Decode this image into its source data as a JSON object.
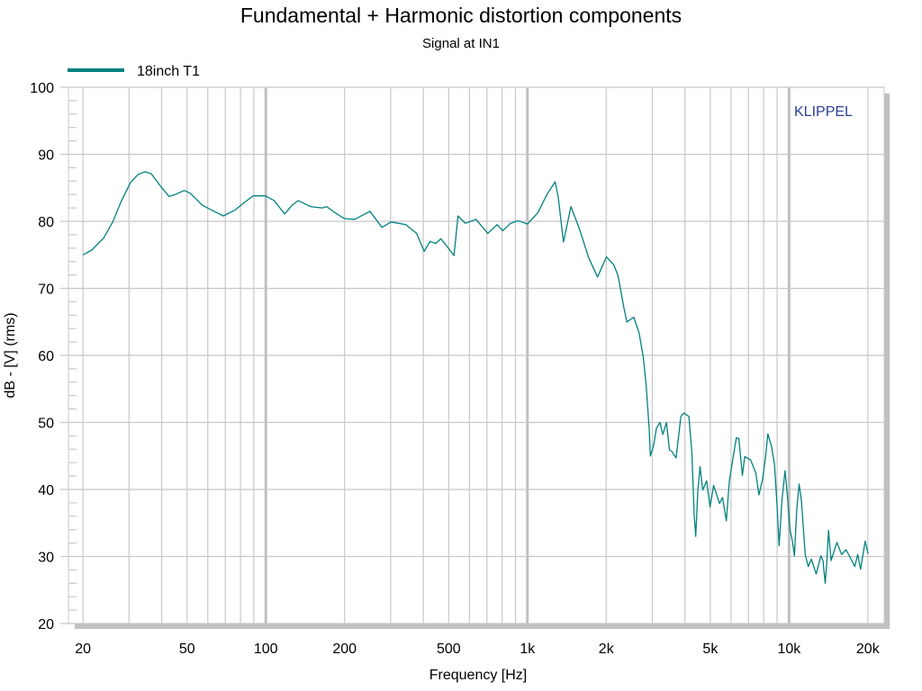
{
  "chart_data": {
    "type": "line",
    "title": "Fundamental + Harmonic distortion components",
    "subtitle": "Signal at IN1",
    "xlabel": "Frequency [Hz]",
    "ylabel": "dB - [V]  (rms)",
    "xscale": "log",
    "xlim": [
      17.6,
      23100
    ],
    "ylim": [
      20,
      100
    ],
    "grid": true,
    "legend_position": "top-left",
    "watermark": "KLIPPEL",
    "xticks": [
      {
        "value": 20,
        "label": "20"
      },
      {
        "value": 50,
        "label": "50"
      },
      {
        "value": 100,
        "label": "100"
      },
      {
        "value": 200,
        "label": "200"
      },
      {
        "value": 500,
        "label": "500"
      },
      {
        "value": 1000,
        "label": "1k"
      },
      {
        "value": 2000,
        "label": "2k"
      },
      {
        "value": 5000,
        "label": "5k"
      },
      {
        "value": 10000,
        "label": "10k"
      },
      {
        "value": 20000,
        "label": "20k"
      }
    ],
    "yticks": [
      20,
      30,
      40,
      50,
      60,
      70,
      80,
      90,
      100
    ],
    "series": [
      {
        "name": "18inch T1",
        "color": "#00827f",
        "points": [
          [
            20,
            75.0
          ],
          [
            21.6,
            75.7
          ],
          [
            24,
            77.5
          ],
          [
            26,
            79.9
          ],
          [
            28.1,
            83.1
          ],
          [
            30.4,
            85.8
          ],
          [
            32.5,
            87.0
          ],
          [
            34.6,
            87.4
          ],
          [
            36.5,
            87.1
          ],
          [
            39.5,
            85.3
          ],
          [
            42.7,
            83.7
          ],
          [
            45,
            84.0
          ],
          [
            48.8,
            84.6
          ],
          [
            51.4,
            84.2
          ],
          [
            57.2,
            82.4
          ],
          [
            61.9,
            81.7
          ],
          [
            68.8,
            80.8
          ],
          [
            76.4,
            81.7
          ],
          [
            82.7,
            82.8
          ],
          [
            89.5,
            83.8
          ],
          [
            99.5,
            83.8
          ],
          [
            107.6,
            83.1
          ],
          [
            118,
            81.1
          ],
          [
            126,
            82.4
          ],
          [
            133,
            83.1
          ],
          [
            148,
            82.2
          ],
          [
            164,
            82.0
          ],
          [
            171,
            82.2
          ],
          [
            182,
            81.4
          ],
          [
            196,
            80.6
          ],
          [
            200,
            80.4
          ],
          [
            219,
            80.3
          ],
          [
            250,
            81.5
          ],
          [
            278,
            79.1
          ],
          [
            301,
            79.9
          ],
          [
            343,
            79.5
          ],
          [
            377,
            78.2
          ],
          [
            403,
            75.5
          ],
          [
            424,
            77.0
          ],
          [
            446,
            76.7
          ],
          [
            467,
            77.4
          ],
          [
            494,
            76.2
          ],
          [
            524,
            74.9
          ],
          [
            543,
            80.8
          ],
          [
            579,
            79.7
          ],
          [
            636,
            80.3
          ],
          [
            705,
            78.2
          ],
          [
            766,
            79.5
          ],
          [
            805,
            78.6
          ],
          [
            862,
            79.7
          ],
          [
            922,
            80.1
          ],
          [
            1000,
            79.6
          ],
          [
            1097,
            81.3
          ],
          [
            1187,
            84.0
          ],
          [
            1277,
            85.9
          ],
          [
            1312,
            83.5
          ],
          [
            1373,
            76.9
          ],
          [
            1466,
            82.2
          ],
          [
            1583,
            78.8
          ],
          [
            1713,
            74.6
          ],
          [
            1852,
            71.7
          ],
          [
            2005,
            74.7
          ],
          [
            2139,
            73.5
          ],
          [
            2220,
            71.9
          ],
          [
            2335,
            67.2
          ],
          [
            2398,
            65.0
          ],
          [
            2550,
            65.7
          ],
          [
            2670,
            63.4
          ],
          [
            2770,
            59.8
          ],
          [
            2840,
            55.8
          ],
          [
            2920,
            49.1
          ],
          [
            2950,
            45.0
          ],
          [
            3030,
            46.4
          ],
          [
            3110,
            49.1
          ],
          [
            3210,
            50.0
          ],
          [
            3290,
            48.2
          ],
          [
            3400,
            50.0
          ],
          [
            3490,
            45.9
          ],
          [
            3560,
            45.7
          ],
          [
            3700,
            44.7
          ],
          [
            3860,
            50.9
          ],
          [
            3960,
            51.4
          ],
          [
            4140,
            50.9
          ],
          [
            4250,
            45.5
          ],
          [
            4340,
            36.1
          ],
          [
            4400,
            33.0
          ],
          [
            4480,
            39.7
          ],
          [
            4570,
            43.4
          ],
          [
            4680,
            39.9
          ],
          [
            4840,
            41.3
          ],
          [
            4990,
            37.4
          ],
          [
            5150,
            40.6
          ],
          [
            5420,
            37.9
          ],
          [
            5570,
            38.8
          ],
          [
            5760,
            35.3
          ],
          [
            5910,
            41.2
          ],
          [
            6100,
            44.6
          ],
          [
            6290,
            47.7
          ],
          [
            6430,
            47.6
          ],
          [
            6630,
            42.1
          ],
          [
            6770,
            44.9
          ],
          [
            7130,
            44.4
          ],
          [
            7470,
            42.4
          ],
          [
            7670,
            39.2
          ],
          [
            7920,
            41.5
          ],
          [
            8130,
            44.8
          ],
          [
            8300,
            48.3
          ],
          [
            8570,
            46.4
          ],
          [
            8800,
            43.7
          ],
          [
            8990,
            37.9
          ],
          [
            9160,
            31.6
          ],
          [
            9390,
            38.3
          ],
          [
            9650,
            42.8
          ],
          [
            9850,
            39.2
          ],
          [
            10090,
            33.9
          ],
          [
            10320,
            32.1
          ],
          [
            10480,
            30.1
          ],
          [
            10700,
            37.0
          ],
          [
            10920,
            40.8
          ],
          [
            11150,
            38.3
          ],
          [
            11530,
            30.3
          ],
          [
            11840,
            28.5
          ],
          [
            12170,
            29.6
          ],
          [
            12700,
            27.4
          ],
          [
            13230,
            30.1
          ],
          [
            13480,
            29.4
          ],
          [
            13750,
            26.0
          ],
          [
            13930,
            28.9
          ],
          [
            14150,
            33.9
          ],
          [
            14470,
            29.4
          ],
          [
            15240,
            32.1
          ],
          [
            15880,
            30.3
          ],
          [
            16510,
            31.0
          ],
          [
            17160,
            29.8
          ],
          [
            17830,
            28.5
          ],
          [
            18300,
            30.3
          ],
          [
            18770,
            28.1
          ],
          [
            19540,
            32.3
          ],
          [
            20050,
            30.4
          ]
        ]
      }
    ]
  },
  "colors": {
    "grid": "#c8c8c8",
    "major_grid": "#c0c0c0",
    "shadow": "#c0c0c0",
    "watermark": "#2a3f8f",
    "text": "#000000"
  }
}
